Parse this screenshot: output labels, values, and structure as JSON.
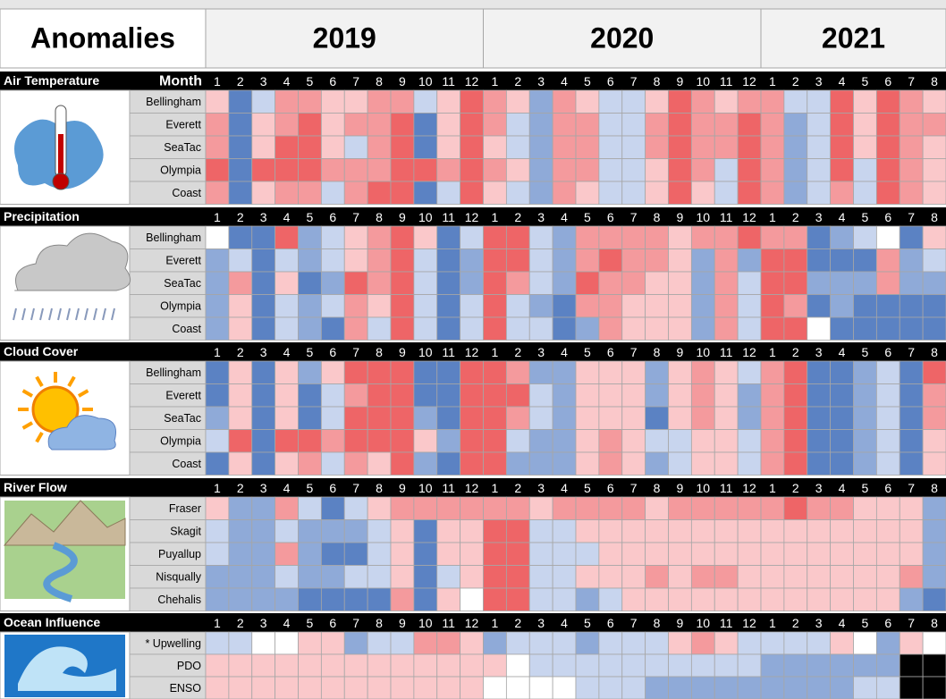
{
  "title": "Anomalies",
  "years": [
    "2019",
    "2020",
    "2021"
  ],
  "month_label": "Month",
  "months": [
    1,
    2,
    3,
    4,
    5,
    6,
    7,
    8,
    9,
    10,
    11,
    12,
    1,
    2,
    3,
    4,
    5,
    6,
    7,
    8,
    9,
    10,
    11,
    12,
    1,
    2,
    3,
    4,
    5,
    6,
    7,
    8
  ],
  "color_scale": {
    "-3": "#5b82c3",
    "-2": "#8faad8",
    "-1": "#c8d5ee",
    "0": "#ffffff",
    "1": "#fac8ca",
    "2": "#f49a9d",
    "3": "#ee6567",
    "missing": "#000000"
  },
  "sections": [
    {
      "name": "Air Temperature",
      "rows": [
        {
          "label": "Bellingham",
          "values": [
            1,
            -3,
            -1,
            2,
            2,
            1,
            1,
            2,
            2,
            -1,
            1,
            3,
            2,
            1,
            -2,
            2,
            1,
            -1,
            -1,
            1,
            3,
            2,
            1,
            2,
            2,
            -1,
            -1,
            3,
            1,
            3,
            2,
            1
          ]
        },
        {
          "label": "Everett",
          "values": [
            2,
            -3,
            1,
            2,
            3,
            1,
            2,
            2,
            3,
            -3,
            1,
            3,
            2,
            -1,
            -2,
            2,
            2,
            -1,
            -1,
            2,
            3,
            2,
            2,
            3,
            2,
            -2,
            -1,
            3,
            1,
            3,
            2,
            2
          ]
        },
        {
          "label": "SeaTac",
          "values": [
            2,
            -3,
            1,
            3,
            3,
            1,
            -1,
            2,
            3,
            -3,
            1,
            3,
            1,
            -1,
            -2,
            2,
            2,
            -1,
            -1,
            2,
            3,
            2,
            2,
            3,
            2,
            -2,
            -1,
            3,
            1,
            3,
            2,
            1
          ]
        },
        {
          "label": "Olympia",
          "values": [
            3,
            -3,
            3,
            3,
            3,
            2,
            2,
            2,
            3,
            3,
            2,
            3,
            2,
            1,
            -2,
            2,
            2,
            -1,
            -1,
            1,
            3,
            2,
            -1,
            3,
            2,
            -2,
            -1,
            3,
            -1,
            3,
            2,
            1
          ]
        },
        {
          "label": "Coast",
          "values": [
            2,
            -3,
            1,
            2,
            2,
            -1,
            2,
            3,
            3,
            -3,
            -1,
            3,
            1,
            -1,
            -2,
            2,
            1,
            -1,
            -1,
            1,
            3,
            1,
            -1,
            3,
            2,
            -2,
            -1,
            2,
            -1,
            3,
            2,
            1
          ]
        }
      ]
    },
    {
      "name": "Precipitation",
      "rows": [
        {
          "label": "Bellingham",
          "values": [
            0,
            -3,
            -3,
            3,
            -2,
            -1,
            1,
            2,
            3,
            1,
            -3,
            -1,
            3,
            3,
            -1,
            -2,
            2,
            2,
            2,
            2,
            1,
            2,
            2,
            3,
            2,
            2,
            -3,
            -2,
            -1,
            0,
            -3,
            1
          ]
        },
        {
          "label": "Everett",
          "values": [
            -2,
            -1,
            -3,
            -1,
            -2,
            -1,
            1,
            2,
            3,
            -1,
            -3,
            -2,
            3,
            3,
            -1,
            -2,
            2,
            3,
            2,
            2,
            1,
            -2,
            2,
            -2,
            3,
            3,
            -3,
            -3,
            -3,
            2,
            -2,
            -1
          ]
        },
        {
          "label": "SeaTac",
          "values": [
            -2,
            2,
            -3,
            1,
            -3,
            -2,
            3,
            2,
            3,
            -1,
            -3,
            -2,
            3,
            2,
            -1,
            -2,
            3,
            2,
            2,
            1,
            1,
            -2,
            2,
            -1,
            3,
            3,
            -2,
            -2,
            -2,
            2,
            -2,
            -2
          ]
        },
        {
          "label": "Olympia",
          "values": [
            -2,
            1,
            -3,
            -1,
            -2,
            -1,
            2,
            1,
            3,
            -1,
            -3,
            -1,
            3,
            -1,
            -2,
            -3,
            2,
            2,
            1,
            1,
            1,
            -2,
            2,
            -1,
            3,
            2,
            -3,
            -2,
            -3,
            -3,
            -3,
            -3
          ]
        },
        {
          "label": "Coast",
          "values": [
            -2,
            1,
            -3,
            -1,
            -2,
            -3,
            2,
            -1,
            3,
            -1,
            -3,
            -1,
            3,
            -1,
            -1,
            -3,
            -2,
            2,
            1,
            1,
            1,
            -2,
            2,
            -1,
            3,
            3,
            0,
            -3,
            -3,
            -3,
            -3,
            -3
          ]
        }
      ]
    },
    {
      "name": "Cloud Cover",
      "rows": [
        {
          "label": "Bellingham",
          "values": [
            -3,
            1,
            -3,
            1,
            -2,
            1,
            3,
            3,
            3,
            -3,
            -3,
            3,
            3,
            2,
            -2,
            -2,
            1,
            1,
            1,
            -2,
            1,
            2,
            1,
            -1,
            2,
            3,
            -3,
            -3,
            -2,
            -1,
            -3,
            3
          ]
        },
        {
          "label": "Everett",
          "values": [
            -3,
            1,
            -3,
            1,
            -3,
            -1,
            2,
            3,
            3,
            -3,
            -3,
            3,
            3,
            3,
            -1,
            -2,
            1,
            1,
            1,
            -2,
            1,
            2,
            1,
            -2,
            2,
            3,
            -3,
            -3,
            -2,
            -1,
            -3,
            2
          ]
        },
        {
          "label": "SeaTac",
          "values": [
            -2,
            1,
            -3,
            1,
            -3,
            -1,
            3,
            3,
            3,
            -2,
            -3,
            3,
            3,
            2,
            -1,
            -2,
            1,
            1,
            1,
            -3,
            1,
            2,
            1,
            -2,
            2,
            3,
            -3,
            -3,
            -2,
            -1,
            -3,
            2
          ]
        },
        {
          "label": "Olympia",
          "values": [
            -1,
            3,
            -3,
            3,
            3,
            2,
            3,
            3,
            3,
            1,
            -2,
            3,
            3,
            -1,
            -2,
            -2,
            1,
            2,
            1,
            -1,
            -1,
            1,
            1,
            -1,
            2,
            3,
            -3,
            -3,
            -2,
            -1,
            -3,
            1
          ]
        },
        {
          "label": "Coast",
          "values": [
            -3,
            1,
            -3,
            1,
            2,
            -1,
            2,
            1,
            3,
            -2,
            -3,
            3,
            3,
            -2,
            -2,
            -2,
            1,
            2,
            1,
            -2,
            -1,
            1,
            1,
            -1,
            2,
            3,
            -3,
            -3,
            -2,
            -1,
            -3,
            1
          ]
        }
      ]
    },
    {
      "name": "River Flow",
      "rows": [
        {
          "label": "Fraser",
          "values": [
            1,
            -2,
            -2,
            2,
            -1,
            -3,
            -1,
            1,
            2,
            2,
            2,
            2,
            2,
            2,
            1,
            2,
            2,
            2,
            2,
            1,
            2,
            2,
            2,
            2,
            2,
            3,
            2,
            2,
            1,
            1,
            1,
            -2
          ]
        },
        {
          "label": "Skagit",
          "values": [
            -1,
            -2,
            -2,
            -1,
            -2,
            -2,
            -2,
            -1,
            1,
            -3,
            1,
            1,
            3,
            3,
            -1,
            -1,
            1,
            1,
            1,
            1,
            1,
            1,
            1,
            1,
            1,
            1,
            1,
            1,
            1,
            1,
            1,
            -2
          ]
        },
        {
          "label": "Puyallup",
          "values": [
            -1,
            -2,
            -2,
            2,
            -2,
            -3,
            -3,
            -1,
            1,
            -3,
            1,
            1,
            3,
            3,
            -1,
            -1,
            -1,
            1,
            1,
            1,
            1,
            1,
            1,
            1,
            1,
            1,
            1,
            1,
            1,
            1,
            1,
            -2
          ]
        },
        {
          "label": "Nisqually",
          "values": [
            -2,
            -2,
            -2,
            -1,
            -2,
            -2,
            -1,
            -1,
            1,
            -3,
            -1,
            1,
            3,
            3,
            -1,
            -1,
            1,
            1,
            1,
            2,
            1,
            2,
            2,
            1,
            1,
            1,
            1,
            1,
            1,
            1,
            2,
            -2
          ]
        },
        {
          "label": "Chehalis",
          "values": [
            -2,
            -2,
            -2,
            -2,
            -3,
            -3,
            -3,
            -3,
            2,
            -3,
            1,
            0,
            3,
            3,
            -1,
            -1,
            -2,
            -1,
            1,
            1,
            1,
            1,
            1,
            1,
            1,
            1,
            1,
            1,
            1,
            1,
            -2,
            -3
          ]
        }
      ]
    },
    {
      "name": "Ocean Influence",
      "rows": [
        {
          "label": "* Upwelling",
          "values": [
            -1,
            -1,
            0,
            0,
            1,
            1,
            -2,
            -1,
            -1,
            2,
            2,
            1,
            -2,
            -1,
            -1,
            -1,
            -2,
            -1,
            -1,
            -1,
            1,
            2,
            1,
            -1,
            -1,
            -1,
            -1,
            1,
            0,
            -2,
            1,
            0
          ]
        },
        {
          "label": "PDO",
          "values": [
            1,
            1,
            1,
            1,
            1,
            1,
            1,
            1,
            1,
            1,
            1,
            1,
            1,
            0,
            -1,
            -1,
            -1,
            -1,
            -1,
            -1,
            -1,
            -1,
            -1,
            -1,
            -2,
            -2,
            -2,
            -2,
            -2,
            -2,
            null,
            null
          ]
        },
        {
          "label": "ENSO",
          "values": [
            1,
            1,
            1,
            1,
            1,
            1,
            1,
            1,
            1,
            1,
            1,
            1,
            0,
            0,
            0,
            0,
            -1,
            -1,
            -1,
            -2,
            -2,
            -2,
            -2,
            -2,
            -2,
            -2,
            -2,
            -2,
            -1,
            -1,
            null,
            null
          ]
        }
      ]
    }
  ]
}
